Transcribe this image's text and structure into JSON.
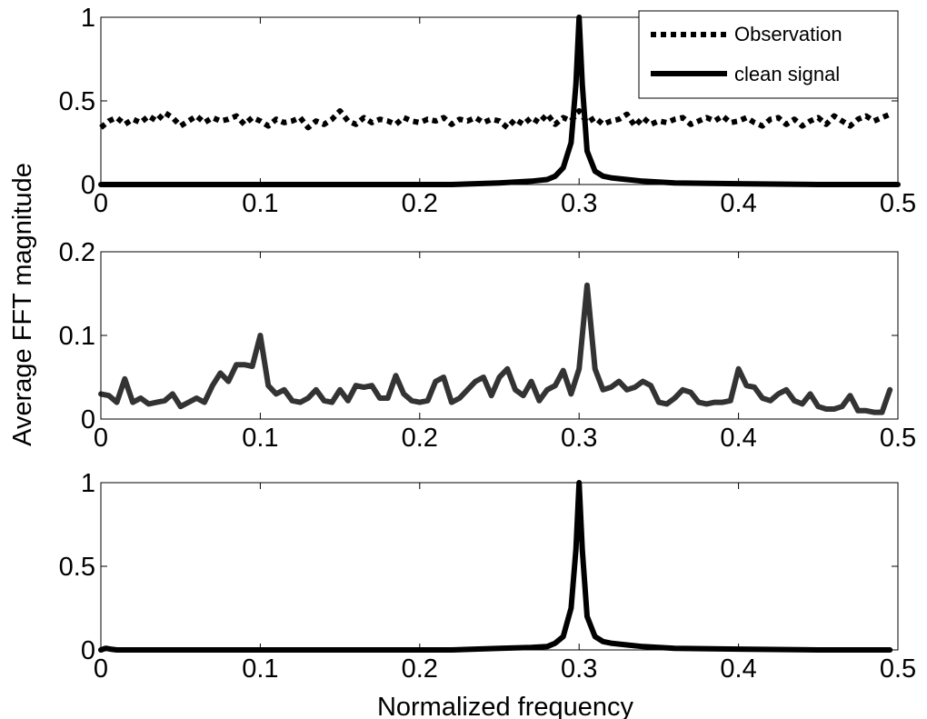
{
  "figure": {
    "ylabel": "Average FFT magnitude",
    "xlabel": "Normalized frequency"
  },
  "legend": {
    "items": [
      {
        "label": "Observation",
        "style": "dotted"
      },
      {
        "label": "clean signal",
        "style": "solid"
      }
    ]
  },
  "chart_data": [
    {
      "type": "line",
      "panel": "top",
      "xlim": [
        0,
        0.5
      ],
      "ylim": [
        0,
        1
      ],
      "xticks": [
        "0",
        "0.1",
        "0.2",
        "0.3",
        "0.4",
        "0.5"
      ],
      "yticks": [
        "0",
        "0.5",
        "1"
      ],
      "legend_position": "top-right",
      "series": [
        {
          "name": "Observation",
          "color": "#000000",
          "style": "dotted",
          "x": [
            0,
            0.005,
            0.01,
            0.015,
            0.02,
            0.025,
            0.03,
            0.035,
            0.04,
            0.045,
            0.05,
            0.055,
            0.06,
            0.065,
            0.07,
            0.075,
            0.08,
            0.085,
            0.09,
            0.095,
            0.1,
            0.105,
            0.11,
            0.115,
            0.12,
            0.125,
            0.13,
            0.135,
            0.14,
            0.145,
            0.15,
            0.155,
            0.16,
            0.165,
            0.17,
            0.175,
            0.18,
            0.185,
            0.19,
            0.195,
            0.2,
            0.205,
            0.21,
            0.215,
            0.22,
            0.225,
            0.23,
            0.235,
            0.24,
            0.245,
            0.25,
            0.255,
            0.26,
            0.265,
            0.27,
            0.275,
            0.28,
            0.285,
            0.29,
            0.295,
            0.3,
            0.305,
            0.31,
            0.315,
            0.32,
            0.325,
            0.33,
            0.335,
            0.34,
            0.345,
            0.35,
            0.355,
            0.36,
            0.365,
            0.37,
            0.375,
            0.38,
            0.385,
            0.39,
            0.395,
            0.4,
            0.405,
            0.41,
            0.415,
            0.42,
            0.425,
            0.43,
            0.435,
            0.44,
            0.445,
            0.45,
            0.455,
            0.46,
            0.465,
            0.47,
            0.475,
            0.48,
            0.485,
            0.49,
            0.495
          ],
          "y": [
            0.34,
            0.38,
            0.4,
            0.36,
            0.39,
            0.37,
            0.41,
            0.38,
            0.43,
            0.4,
            0.35,
            0.38,
            0.41,
            0.37,
            0.4,
            0.38,
            0.39,
            0.41,
            0.36,
            0.4,
            0.38,
            0.35,
            0.39,
            0.37,
            0.38,
            0.4,
            0.34,
            0.38,
            0.36,
            0.39,
            0.44,
            0.38,
            0.36,
            0.4,
            0.37,
            0.39,
            0.38,
            0.36,
            0.4,
            0.38,
            0.37,
            0.39,
            0.38,
            0.4,
            0.36,
            0.39,
            0.38,
            0.4,
            0.37,
            0.39,
            0.38,
            0.34,
            0.39,
            0.36,
            0.4,
            0.37,
            0.42,
            0.36,
            0.4,
            0.38,
            0.44,
            0.37,
            0.4,
            0.36,
            0.38,
            0.39,
            0.42,
            0.35,
            0.4,
            0.36,
            0.38,
            0.37,
            0.39,
            0.4,
            0.36,
            0.38,
            0.4,
            0.38,
            0.41,
            0.37,
            0.38,
            0.4,
            0.37,
            0.35,
            0.39,
            0.4,
            0.36,
            0.39,
            0.35,
            0.38,
            0.4,
            0.36,
            0.41,
            0.38,
            0.35,
            0.39,
            0.41,
            0.38,
            0.4,
            0.42
          ]
        },
        {
          "name": "clean signal",
          "color": "#000000",
          "style": "solid",
          "x": [
            0,
            0.05,
            0.1,
            0.15,
            0.2,
            0.22,
            0.25,
            0.27,
            0.28,
            0.285,
            0.29,
            0.295,
            0.298,
            0.3,
            0.302,
            0.305,
            0.31,
            0.315,
            0.32,
            0.33,
            0.34,
            0.36,
            0.4,
            0.45,
            0.5
          ],
          "y": [
            0.0,
            0.0,
            0.0,
            0.0,
            0.0,
            0.0,
            0.01,
            0.02,
            0.03,
            0.05,
            0.1,
            0.25,
            0.6,
            1.0,
            0.6,
            0.2,
            0.08,
            0.05,
            0.04,
            0.03,
            0.02,
            0.01,
            0.005,
            0.0,
            0.0
          ]
        }
      ]
    },
    {
      "type": "line",
      "panel": "middle",
      "xlim": [
        0,
        0.5
      ],
      "ylim": [
        0,
        0.2
      ],
      "xticks": [
        "0",
        "0.1",
        "0.2",
        "0.3",
        "0.4",
        "0.5"
      ],
      "yticks": [
        "0",
        "0.1",
        "0.2"
      ],
      "series": [
        {
          "color": "#333333",
          "style": "solid",
          "x": [
            0,
            0.005,
            0.01,
            0.015,
            0.02,
            0.025,
            0.03,
            0.035,
            0.04,
            0.045,
            0.05,
            0.055,
            0.06,
            0.065,
            0.07,
            0.075,
            0.08,
            0.085,
            0.09,
            0.095,
            0.1,
            0.105,
            0.11,
            0.115,
            0.12,
            0.125,
            0.13,
            0.135,
            0.14,
            0.145,
            0.15,
            0.155,
            0.16,
            0.165,
            0.17,
            0.175,
            0.18,
            0.185,
            0.19,
            0.195,
            0.2,
            0.205,
            0.21,
            0.215,
            0.22,
            0.225,
            0.23,
            0.235,
            0.24,
            0.245,
            0.25,
            0.255,
            0.26,
            0.265,
            0.27,
            0.275,
            0.28,
            0.285,
            0.29,
            0.295,
            0.3,
            0.305,
            0.31,
            0.315,
            0.32,
            0.325,
            0.33,
            0.335,
            0.34,
            0.345,
            0.35,
            0.355,
            0.36,
            0.365,
            0.37,
            0.375,
            0.38,
            0.385,
            0.39,
            0.395,
            0.4,
            0.405,
            0.41,
            0.415,
            0.42,
            0.425,
            0.43,
            0.435,
            0.44,
            0.445,
            0.45,
            0.455,
            0.46,
            0.465,
            0.47,
            0.475,
            0.48,
            0.485,
            0.49,
            0.495
          ],
          "y": [
            0.03,
            0.028,
            0.02,
            0.048,
            0.02,
            0.025,
            0.018,
            0.02,
            0.022,
            0.03,
            0.015,
            0.02,
            0.025,
            0.02,
            0.04,
            0.055,
            0.045,
            0.065,
            0.065,
            0.063,
            0.1,
            0.04,
            0.03,
            0.035,
            0.022,
            0.02,
            0.025,
            0.035,
            0.022,
            0.02,
            0.035,
            0.022,
            0.04,
            0.038,
            0.04,
            0.025,
            0.025,
            0.052,
            0.03,
            0.022,
            0.02,
            0.022,
            0.045,
            0.05,
            0.02,
            0.025,
            0.035,
            0.045,
            0.05,
            0.028,
            0.05,
            0.06,
            0.035,
            0.028,
            0.045,
            0.022,
            0.035,
            0.04,
            0.058,
            0.03,
            0.06,
            0.16,
            0.06,
            0.035,
            0.038,
            0.045,
            0.035,
            0.038,
            0.045,
            0.04,
            0.02,
            0.018,
            0.025,
            0.035,
            0.032,
            0.02,
            0.018,
            0.02,
            0.02,
            0.022,
            0.06,
            0.04,
            0.038,
            0.025,
            0.022,
            0.03,
            0.035,
            0.022,
            0.018,
            0.03,
            0.015,
            0.012,
            0.012,
            0.015,
            0.028,
            0.01,
            0.01,
            0.008,
            0.008,
            0.035
          ]
        }
      ]
    },
    {
      "type": "line",
      "panel": "bottom",
      "xlim": [
        0,
        0.5
      ],
      "ylim": [
        0,
        1
      ],
      "xticks": [
        "0",
        "0.1",
        "0.2",
        "0.3",
        "0.4",
        "0.5"
      ],
      "yticks": [
        "0",
        "0.5",
        "1"
      ],
      "series": [
        {
          "color": "#000000",
          "style": "solid",
          "x": [
            0,
            0.003,
            0.006,
            0.01,
            0.05,
            0.1,
            0.15,
            0.2,
            0.22,
            0.25,
            0.27,
            0.28,
            0.285,
            0.29,
            0.295,
            0.298,
            0.3,
            0.302,
            0.305,
            0.31,
            0.315,
            0.32,
            0.33,
            0.34,
            0.36,
            0.4,
            0.45,
            0.495
          ],
          "y": [
            0.0,
            0.01,
            0.005,
            0.0,
            0.0,
            0.0,
            0.0,
            0.0,
            0.0,
            0.01,
            0.015,
            0.02,
            0.04,
            0.08,
            0.25,
            0.6,
            1.0,
            0.6,
            0.2,
            0.08,
            0.05,
            0.04,
            0.03,
            0.02,
            0.01,
            0.005,
            0.0,
            0.0
          ]
        }
      ]
    }
  ]
}
